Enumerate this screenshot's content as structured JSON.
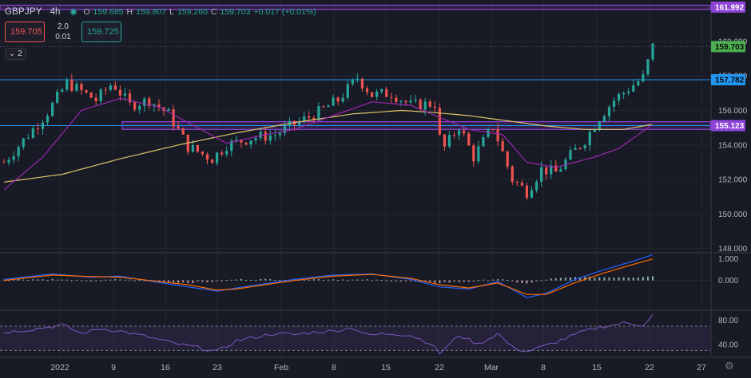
{
  "header": {
    "symbol": "GBPJPY",
    "timeframe": "4h",
    "o_label": "O",
    "o_value": "159.685",
    "h_label": "H",
    "h_value": "159.807",
    "l_label": "L",
    "l_value": "159.260",
    "c_label": "C",
    "c_value": "159.703",
    "change": "+0.017 (+0.01%)"
  },
  "trade": {
    "sell_price": "159.705",
    "spread": "2.0",
    "lot": "0.01",
    "buy_price": "159.725"
  },
  "indicators_toggle": {
    "count": "2"
  },
  "colors": {
    "up": "#26a69a",
    "down": "#ef5350",
    "ma_fast": "#9c27b0",
    "ma_slow": "#e0c36a",
    "zone": "#8e44d8",
    "hline": "#2196f3",
    "macd": "#2962ff",
    "signal": "#ff6d00",
    "rsi": "#7e57c2"
  },
  "chart_data": {
    "type": "candlestick",
    "symbol": "GBPJPY",
    "interval": "4h",
    "price_axis": {
      "ticks": [
        148.0,
        150.0,
        152.0,
        154.0,
        156.0,
        158.0,
        160.0
      ],
      "range": [
        147.8,
        162.4
      ]
    },
    "time_axis": {
      "ticks": [
        "2022",
        "9",
        "16",
        "23",
        "Feb",
        "8",
        "15",
        "22",
        "Mar",
        "8",
        "15",
        "22",
        "27"
      ]
    },
    "price_labels": [
      {
        "value": "161.992",
        "kind": "zone"
      },
      {
        "value": "159.703",
        "kind": "last"
      },
      {
        "value": "157.782",
        "kind": "line"
      },
      {
        "value": "155.123",
        "kind": "zone"
      }
    ],
    "zones": [
      {
        "low": 161.85,
        "high": 162.1
      },
      {
        "low": 154.9,
        "high": 155.35
      }
    ],
    "horizontal_lines": [
      157.782,
      155.123
    ],
    "last_price": 159.703,
    "price_path": [
      [
        0,
        153.0
      ],
      [
        2.2,
        154.4
      ],
      [
        4.5,
        155.9
      ],
      [
        6.5,
        157.6
      ],
      [
        9.5,
        156.6
      ],
      [
        11.2,
        157.6
      ],
      [
        13.0,
        156.3
      ],
      [
        15.0,
        156.6
      ],
      [
        17.0,
        155.8
      ],
      [
        19.0,
        153.9
      ],
      [
        21.5,
        153.2
      ],
      [
        23.0,
        154.0
      ],
      [
        25.5,
        154.4
      ],
      [
        28.0,
        154.6
      ],
      [
        30.0,
        155.2
      ],
      [
        32.5,
        155.9
      ],
      [
        34.5,
        156.6
      ],
      [
        36.5,
        157.9
      ],
      [
        38.0,
        156.9
      ],
      [
        40.0,
        157.0
      ],
      [
        42.0,
        156.3
      ],
      [
        44.5,
        156.4
      ],
      [
        45.2,
        153.6
      ],
      [
        47.0,
        155.1
      ],
      [
        48.5,
        153.3
      ],
      [
        50.5,
        155.1
      ],
      [
        52.5,
        152.0
      ],
      [
        54.0,
        151.3
      ],
      [
        55.5,
        152.6
      ],
      [
        57.0,
        152.4
      ],
      [
        58.5,
        153.4
      ],
      [
        60.0,
        154.3
      ],
      [
        61.5,
        155.6
      ],
      [
        63.0,
        156.6
      ],
      [
        64.8,
        157.4
      ],
      [
        66.0,
        157.9
      ],
      [
        67.0,
        159.7
      ]
    ],
    "ma_fast_path": [
      [
        0,
        151.4
      ],
      [
        4.0,
        153.3
      ],
      [
        8.0,
        156.0
      ],
      [
        12.0,
        156.7
      ],
      [
        16.0,
        156.2
      ],
      [
        20.0,
        155.0
      ],
      [
        23.0,
        154.1
      ],
      [
        27.0,
        154.6
      ],
      [
        30.0,
        154.9
      ],
      [
        34.0,
        155.7
      ],
      [
        38.0,
        156.5
      ],
      [
        42.0,
        156.3
      ],
      [
        45.0,
        155.6
      ],
      [
        48.0,
        154.9
      ],
      [
        51.5,
        154.6
      ],
      [
        54.0,
        153.0
      ],
      [
        57.0,
        152.7
      ],
      [
        61.0,
        153.3
      ],
      [
        63.5,
        153.8
      ],
      [
        65.5,
        154.6
      ],
      [
        67.0,
        155.2
      ]
    ],
    "ma_slow_path": [
      [
        0,
        151.85
      ],
      [
        6.0,
        152.3
      ],
      [
        12.0,
        153.2
      ],
      [
        18.0,
        154.0
      ],
      [
        24.0,
        154.7
      ],
      [
        30.0,
        155.3
      ],
      [
        36.0,
        155.8
      ],
      [
        41.0,
        156.0
      ],
      [
        44.0,
        155.9
      ],
      [
        48.0,
        155.7
      ],
      [
        52.0,
        155.4
      ],
      [
        56.0,
        155.1
      ],
      [
        60.0,
        154.9
      ],
      [
        64.0,
        154.9
      ],
      [
        67.0,
        155.2
      ]
    ],
    "macd": {
      "axis_ticks": [
        "1.000",
        "0.000"
      ],
      "range": [
        -1.35,
        1.25
      ],
      "macd_path": [
        [
          0,
          0.05
        ],
        [
          5,
          0.3
        ],
        [
          9,
          0.15
        ],
        [
          12,
          0.2
        ],
        [
          16,
          -0.1
        ],
        [
          19,
          -0.3
        ],
        [
          22,
          -0.5
        ],
        [
          24,
          -0.35
        ],
        [
          27,
          -0.15
        ],
        [
          30,
          0.05
        ],
        [
          34,
          0.25
        ],
        [
          38,
          0.3
        ],
        [
          42,
          0.05
        ],
        [
          45,
          -0.3
        ],
        [
          48,
          -0.4
        ],
        [
          51,
          -0.05
        ],
        [
          54,
          -0.8
        ],
        [
          56,
          -0.6
        ],
        [
          59,
          0.05
        ],
        [
          62,
          0.5
        ],
        [
          65,
          0.9
        ],
        [
          67,
          1.2
        ]
      ],
      "signal_path": [
        [
          0,
          0.0
        ],
        [
          5,
          0.25
        ],
        [
          9,
          0.18
        ],
        [
          12,
          0.15
        ],
        [
          16,
          -0.05
        ],
        [
          19,
          -0.2
        ],
        [
          22,
          -0.45
        ],
        [
          24,
          -0.4
        ],
        [
          27,
          -0.2
        ],
        [
          30,
          0.0
        ],
        [
          34,
          0.2
        ],
        [
          38,
          0.28
        ],
        [
          42,
          0.1
        ],
        [
          45,
          -0.2
        ],
        [
          48,
          -0.35
        ],
        [
          51,
          -0.12
        ],
        [
          54,
          -0.65
        ],
        [
          56,
          -0.65
        ],
        [
          59,
          -0.1
        ],
        [
          62,
          0.35
        ],
        [
          65,
          0.75
        ],
        [
          67,
          1.0
        ]
      ]
    },
    "rsi": {
      "axis_ticks": [
        "80.00",
        "40.00"
      ],
      "range": [
        20,
        95
      ],
      "bands": [
        70,
        30
      ],
      "path": [
        [
          0,
          60
        ],
        [
          3,
          65
        ],
        [
          6,
          72
        ],
        [
          8,
          58
        ],
        [
          10,
          66
        ],
        [
          12,
          62
        ],
        [
          14,
          55
        ],
        [
          16,
          48
        ],
        [
          18,
          40
        ],
        [
          20,
          35
        ],
        [
          22,
          28
        ],
        [
          24,
          46
        ],
        [
          26,
          52
        ],
        [
          28,
          58
        ],
        [
          30,
          56
        ],
        [
          32,
          60
        ],
        [
          34,
          62
        ],
        [
          36,
          68
        ],
        [
          37.5,
          55
        ],
        [
          40,
          58
        ],
        [
          42,
          55
        ],
        [
          44,
          42
        ],
        [
          45,
          25
        ],
        [
          47,
          55
        ],
        [
          49,
          40
        ],
        [
          51,
          58
        ],
        [
          52.5,
          35
        ],
        [
          54,
          28
        ],
        [
          56,
          38
        ],
        [
          58,
          50
        ],
        [
          60,
          62
        ],
        [
          62,
          70
        ],
        [
          64,
          75
        ],
        [
          66,
          72
        ],
        [
          67,
          88
        ]
      ]
    }
  }
}
